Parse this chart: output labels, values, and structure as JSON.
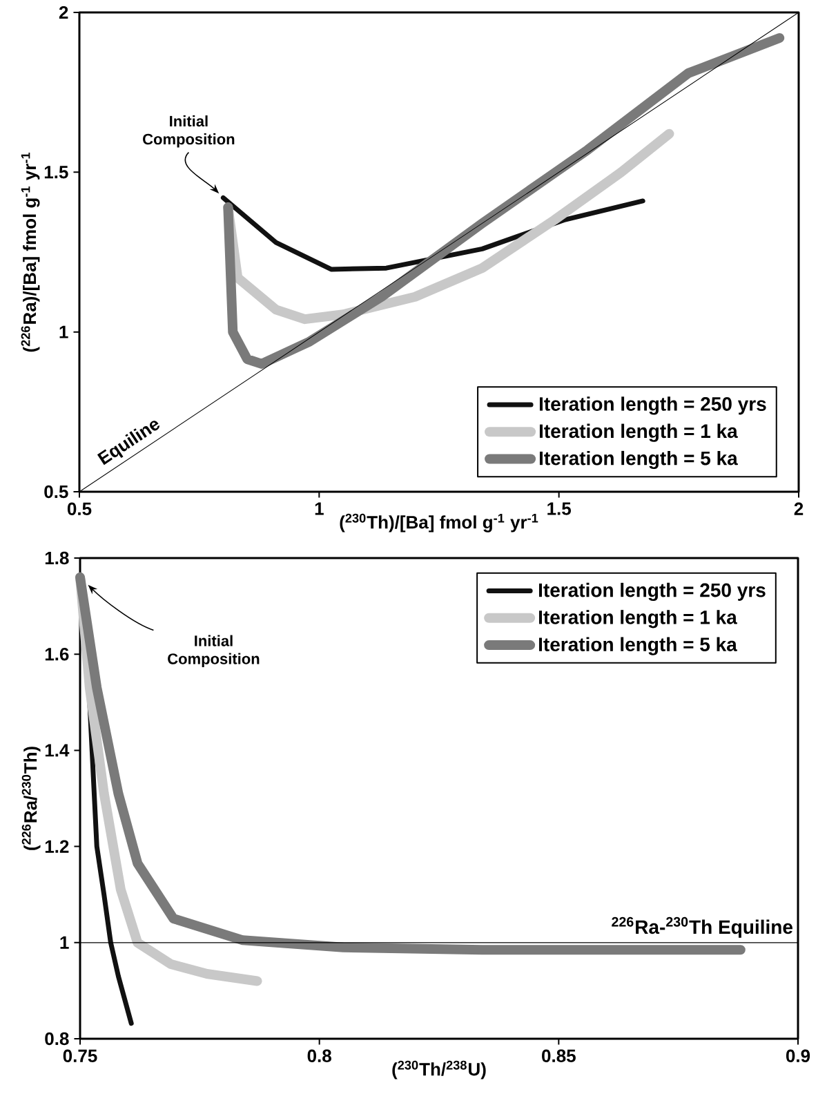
{
  "chart_data": [
    {
      "type": "line",
      "xlabel": "($^{230}$Th)/[Ba] fmol g$^{-1}$ yr$^{-1}$",
      "ylabel": "($^{226}$Ra)/[Ba] fmol g$^{-1}$ yr$^{-1}$",
      "xlim": [
        0.5,
        2
      ],
      "ylim": [
        0.5,
        2
      ],
      "xticks": [
        0.5,
        1,
        1.5,
        2
      ],
      "yticks": [
        0.5,
        1,
        1.5,
        2
      ],
      "grid": false,
      "legend": "bottom right",
      "series": [
        {
          "name": "Iteration length = 250 yrs",
          "color": "#111111",
          "x": [
            0.8,
            0.91,
            1.025,
            1.14,
            1.34,
            1.51,
            1.675
          ],
          "values": [
            1.42,
            1.28,
            1.196,
            1.2,
            1.26,
            1.35,
            1.41
          ]
        },
        {
          "name": "Iteration length = 1 ka",
          "color": "#c8c8c8",
          "x": [
            0.81,
            0.83,
            0.91,
            0.97,
            1.05,
            1.2,
            1.34,
            1.49,
            1.63,
            1.73
          ],
          "values": [
            1.39,
            1.17,
            1.07,
            1.04,
            1.055,
            1.11,
            1.2,
            1.35,
            1.5,
            1.62
          ]
        },
        {
          "name": "Iteration length = 5 ka",
          "color": "#7a7a7a",
          "x": [
            0.81,
            0.82,
            0.85,
            0.88,
            0.98,
            1.13,
            1.34,
            1.56,
            1.77,
            1.96
          ],
          "values": [
            1.39,
            1.0,
            0.915,
            0.9,
            0.97,
            1.11,
            1.34,
            1.57,
            1.81,
            1.92
          ]
        },
        {
          "color": "#000000",
          "x": [
            0.5,
            2
          ],
          "values": [
            0.5,
            2
          ]
        }
      ],
      "annotations": [
        "Initial Composition",
        {
          "text": "Equiline",
          "x": 0.62,
          "y": 0.62
        }
      ]
    },
    {
      "type": "line",
      "xlabel": "($^{230}$Th/$^{238}$U)",
      "ylabel": "($^{226}$Ra/$^{230}$Th)",
      "xlim": [
        0.75,
        0.9
      ],
      "ylim": [
        0.8,
        1.8
      ],
      "xticks": [
        0.75,
        0.8,
        0.85,
        0.9
      ],
      "yticks": [
        0.8,
        1,
        1.2,
        1.4,
        1.6,
        1.8
      ],
      "grid": false,
      "legend": "top right",
      "series": [
        {
          "name": "Iteration length = 250 yrs",
          "color": "#111111",
          "x": [
            0.7505,
            0.752,
            0.7535,
            0.755,
            0.7564,
            0.758,
            0.7607
          ],
          "values": [
            1.75,
            1.5,
            1.2,
            1.1,
            1.0,
            0.93,
            0.832
          ]
        },
        {
          "name": "Iteration length = 1 ka",
          "color": "#c8c8c8",
          "x": [
            0.75,
            0.752,
            0.755,
            0.7585,
            0.762,
            0.769,
            0.7765,
            0.787
          ],
          "values": [
            1.76,
            1.53,
            1.31,
            1.11,
            1.0,
            0.955,
            0.935,
            0.92
          ]
        },
        {
          "name": "Iteration length = 5 ka",
          "color": "#7a7a7a",
          "x": [
            0.75,
            0.7535,
            0.758,
            0.762,
            0.7695,
            0.784,
            0.805,
            0.834,
            0.888
          ],
          "values": [
            1.76,
            1.53,
            1.31,
            1.165,
            1.05,
            1.005,
            0.99,
            0.985,
            0.985
          ]
        }
      ],
      "ref_lines": [
        {
          "axis": "y",
          "value": 1,
          "label": "$^{226}$Ra-$^{230}$Th Equiline"
        }
      ],
      "annotations": [
        "Initial Composition"
      ]
    }
  ]
}
